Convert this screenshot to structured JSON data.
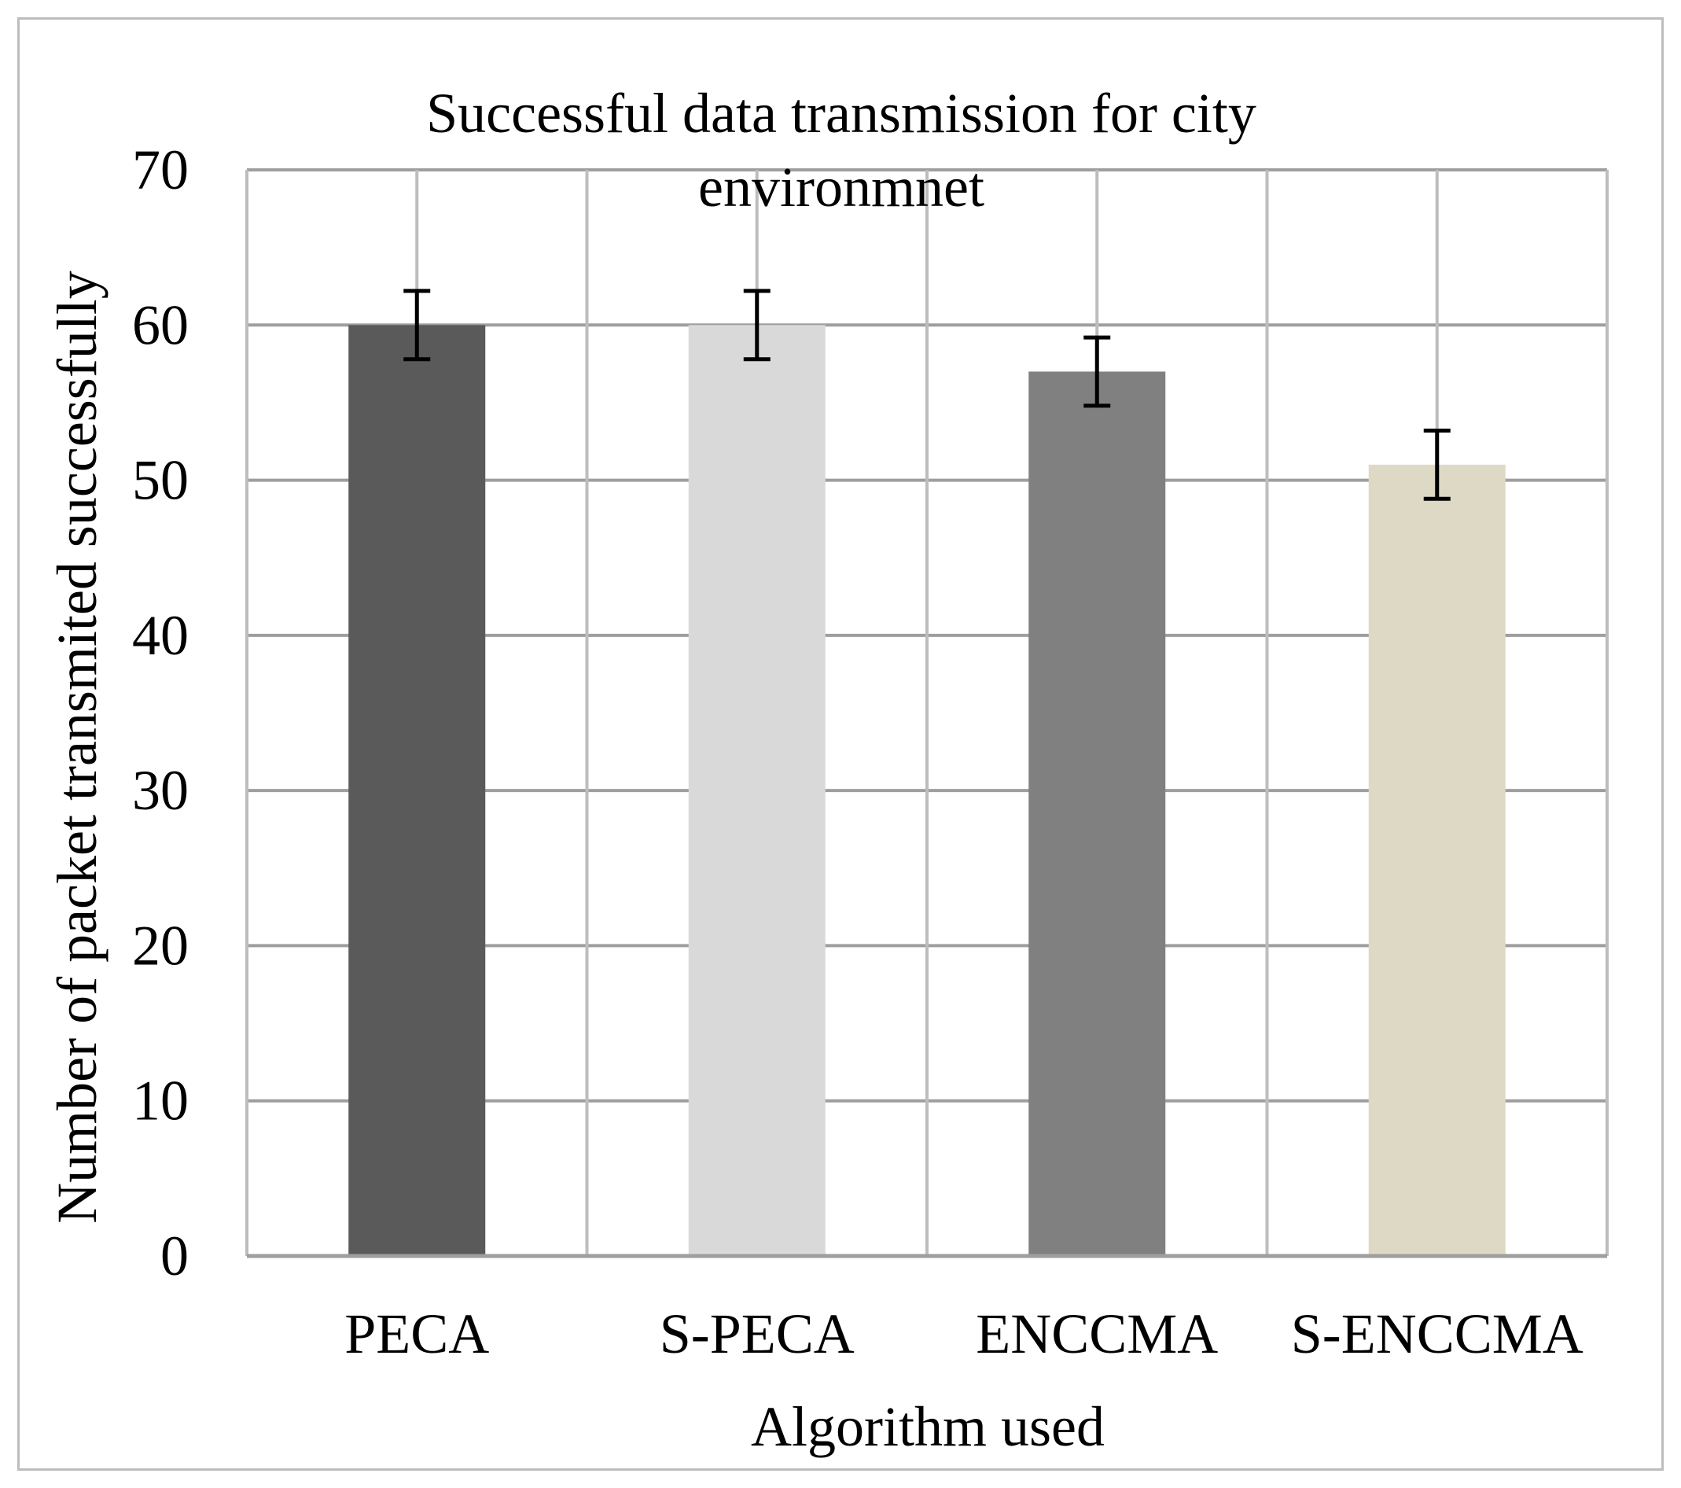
{
  "chart_data": {
    "type": "bar",
    "title": "Successful data transmission for city environmnet",
    "title_lines": [
      "Successful data transmission for city",
      "environmnet"
    ],
    "xlabel": "Algorithm used",
    "ylabel": "Number of packet transmited successfully",
    "categories": [
      "PECA",
      "S-PECA",
      "ENCCMA",
      "S-ENCCMA"
    ],
    "values": [
      60,
      60,
      57,
      51
    ],
    "error": [
      2.2,
      2.2,
      2.2,
      2.2
    ],
    "colors": [
      "#5a5a5a",
      "#d9d9d9",
      "#808080",
      "#ddd9c4"
    ],
    "ylim": [
      0,
      70
    ],
    "yticks": [
      0,
      10,
      20,
      30,
      40,
      50,
      60,
      70
    ],
    "grid": true,
    "legend": "none"
  }
}
